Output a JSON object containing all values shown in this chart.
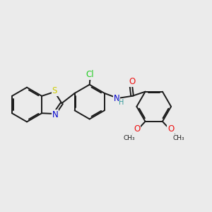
{
  "background_color": "#ebebeb",
  "bond_color": "#1a1a1a",
  "atom_colors": {
    "S": "#cccc00",
    "N": "#0000cc",
    "O": "#ee1111",
    "Cl": "#22cc22",
    "H": "#339999",
    "C": "#1a1a1a"
  },
  "figsize": [
    3.0,
    3.0
  ],
  "dpi": 100
}
